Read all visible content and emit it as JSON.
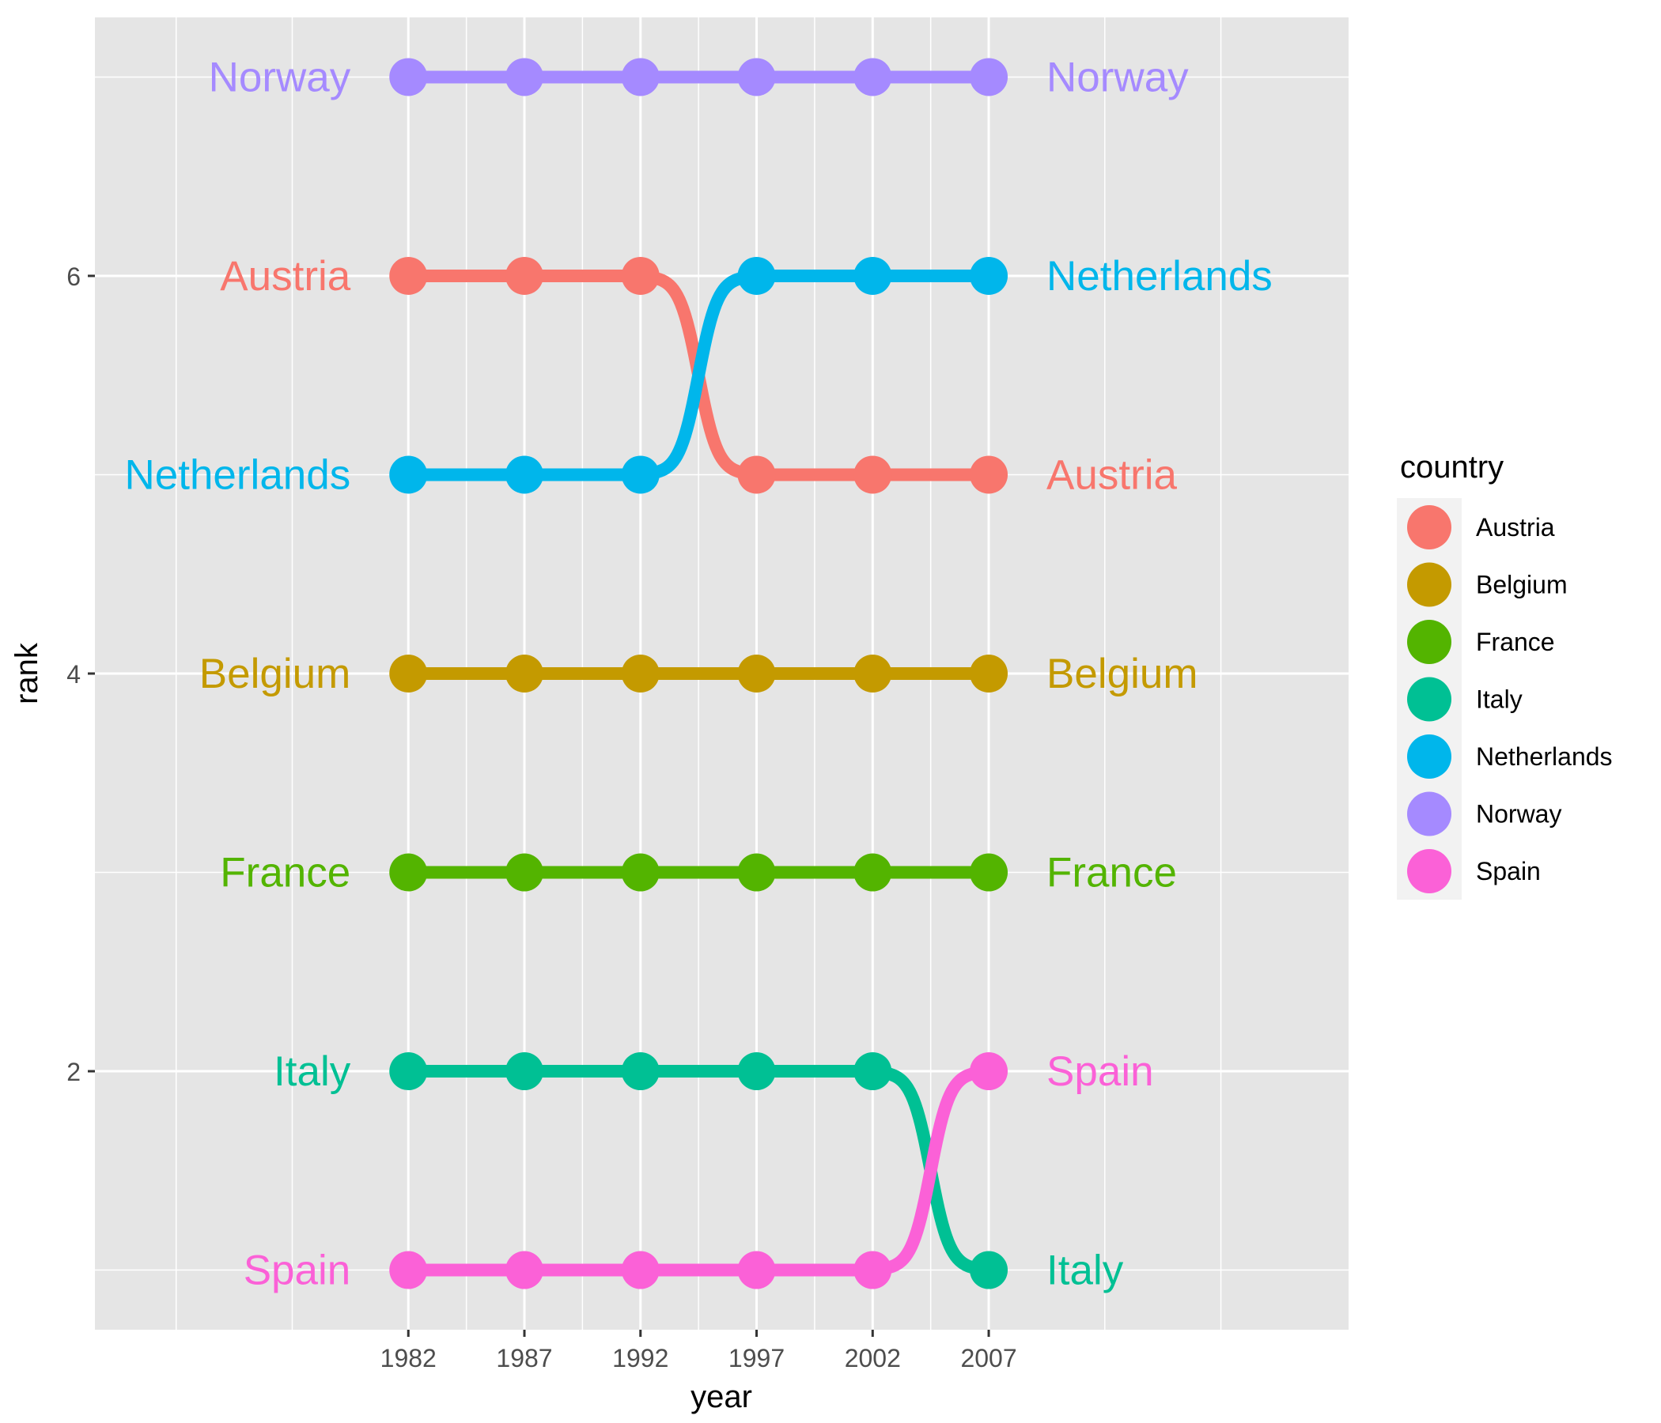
{
  "chart_data": {
    "type": "line",
    "subtype": "bump",
    "xlabel": "year",
    "ylabel": "rank",
    "x": [
      1982,
      1987,
      1992,
      1997,
      2002,
      2007
    ],
    "x_ticks": [
      "1982",
      "1987",
      "1992",
      "1997",
      "2002",
      "2007"
    ],
    "y_ticks": [
      "2",
      "4",
      "6"
    ],
    "xlim": [
      1968.5,
      2022.5
    ],
    "ylim": [
      0.7,
      7.3
    ],
    "grid": true,
    "panel_background": "#E5E5E5",
    "legend": {
      "title": "country",
      "position": "right"
    },
    "series": [
      {
        "name": "Austria",
        "color": "#F8766D",
        "values": [
          6,
          6,
          6,
          5,
          5,
          5
        ]
      },
      {
        "name": "Belgium",
        "color": "#C49A00",
        "values": [
          4,
          4,
          4,
          4,
          4,
          4
        ]
      },
      {
        "name": "France",
        "color": "#53B400",
        "values": [
          3,
          3,
          3,
          3,
          3,
          3
        ]
      },
      {
        "name": "Italy",
        "color": "#00C094",
        "values": [
          2,
          2,
          2,
          2,
          2,
          1
        ]
      },
      {
        "name": "Netherlands",
        "color": "#00B6EB",
        "values": [
          5,
          5,
          5,
          6,
          6,
          6
        ]
      },
      {
        "name": "Norway",
        "color": "#A58AFF",
        "values": [
          7,
          7,
          7,
          7,
          7,
          7
        ]
      },
      {
        "name": "Spain",
        "color": "#FB61D7",
        "values": [
          1,
          1,
          1,
          1,
          1,
          2
        ]
      }
    ]
  }
}
